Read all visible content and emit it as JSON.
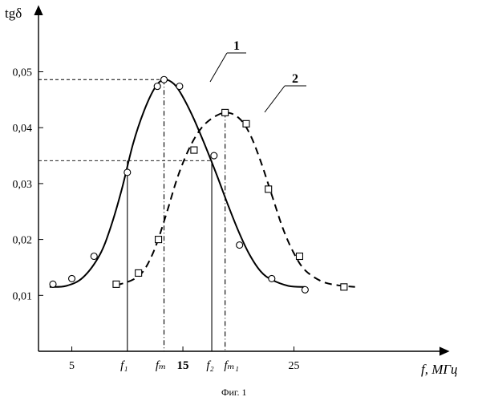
{
  "chart_data": {
    "type": "line",
    "ylabel": "tgδ",
    "xlabel": "f, МГц",
    "caption": "Фиг. 1",
    "xlim": [
      2,
      35
    ],
    "ylim": [
      0.0,
      0.055
    ],
    "x_ticks": [
      {
        "value": 5,
        "label": "5"
      },
      {
        "value": 15,
        "label": "15"
      },
      {
        "value": 25,
        "label": "25"
      }
    ],
    "y_ticks": [
      {
        "value": 0.01,
        "label": "0,01"
      },
      {
        "value": 0.02,
        "label": "0,02"
      },
      {
        "value": 0.03,
        "label": "0,03"
      },
      {
        "value": 0.04,
        "label": "0,04"
      },
      {
        "value": 0.05,
        "label": "0,05"
      }
    ],
    "markers": [
      {
        "value": 10.0,
        "label": "f₁"
      },
      {
        "value": 13.3,
        "label": "fₘ"
      },
      {
        "value": 17.6,
        "label": "f₂"
      },
      {
        "value": 18.8,
        "label": "fₘ₁"
      }
    ],
    "reference_levels": [
      0.0486,
      0.0341
    ],
    "series": [
      {
        "name": "1",
        "style": "solid",
        "marker": "circle",
        "points": [
          [
            3.3,
            0.012
          ],
          [
            5.0,
            0.013
          ],
          [
            7.0,
            0.017
          ],
          [
            10.0,
            0.032
          ],
          [
            12.7,
            0.0474
          ],
          [
            13.3,
            0.0486
          ],
          [
            14.7,
            0.0474
          ],
          [
            17.8,
            0.035
          ],
          [
            20.1,
            0.019
          ],
          [
            23.0,
            0.013
          ],
          [
            26.0,
            0.011
          ]
        ],
        "curve": [
          [
            3.0,
            0.0115
          ],
          [
            4.5,
            0.0117
          ],
          [
            6.0,
            0.0132
          ],
          [
            7.5,
            0.0172
          ],
          [
            8.5,
            0.0222
          ],
          [
            9.5,
            0.029
          ],
          [
            10.5,
            0.037
          ],
          [
            11.5,
            0.043
          ],
          [
            12.5,
            0.0472
          ],
          [
            13.3,
            0.0486
          ],
          [
            14.2,
            0.0478
          ],
          [
            15.0,
            0.0455
          ],
          [
            16.0,
            0.0415
          ],
          [
            17.0,
            0.0368
          ],
          [
            18.0,
            0.0318
          ],
          [
            19.0,
            0.0265
          ],
          [
            20.0,
            0.0215
          ],
          [
            21.0,
            0.0173
          ],
          [
            22.0,
            0.0143
          ],
          [
            23.0,
            0.0128
          ],
          [
            24.5,
            0.0117
          ],
          [
            26.0,
            0.0115
          ]
        ]
      },
      {
        "name": "2",
        "style": "dashed",
        "marker": "square",
        "points": [
          [
            9.0,
            0.012
          ],
          [
            11.0,
            0.014
          ],
          [
            12.8,
            0.02
          ],
          [
            16.0,
            0.036
          ],
          [
            18.8,
            0.0427
          ],
          [
            20.7,
            0.0407
          ],
          [
            22.7,
            0.029
          ],
          [
            25.5,
            0.017
          ],
          [
            29.5,
            0.0115
          ]
        ],
        "curve": [
          [
            9.0,
            0.0118
          ],
          [
            10.5,
            0.0128
          ],
          [
            11.5,
            0.0145
          ],
          [
            12.5,
            0.0185
          ],
          [
            13.5,
            0.0245
          ],
          [
            14.5,
            0.031
          ],
          [
            15.5,
            0.036
          ],
          [
            16.5,
            0.0395
          ],
          [
            17.5,
            0.0415
          ],
          [
            18.8,
            0.0427
          ],
          [
            20.0,
            0.0418
          ],
          [
            21.0,
            0.039
          ],
          [
            22.0,
            0.034
          ],
          [
            23.0,
            0.028
          ],
          [
            24.0,
            0.022
          ],
          [
            25.0,
            0.0175
          ],
          [
            26.0,
            0.0145
          ],
          [
            27.5,
            0.0125
          ],
          [
            29.0,
            0.0118
          ],
          [
            30.5,
            0.0115
          ]
        ]
      }
    ]
  }
}
